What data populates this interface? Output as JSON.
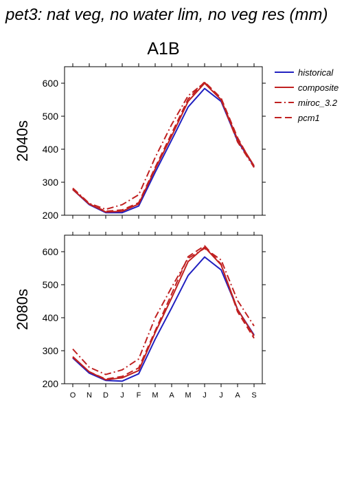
{
  "title": "pet3: nat veg, no water lim, no veg res (mm)",
  "subtitle": "A1B",
  "legend": {
    "placement": "right",
    "entries": [
      {
        "name": "historical",
        "color": "#2020c0",
        "dash": "solid"
      },
      {
        "name": "composite",
        "color": "#c02020",
        "dash": "solid"
      },
      {
        "name": "miroc_3.2",
        "color": "#c02020",
        "dash": "dashdot"
      },
      {
        "name": "pcm1",
        "color": "#c02020",
        "dash": "dashed"
      }
    ]
  },
  "chart_data": [
    {
      "type": "line",
      "panel_label": "2040s",
      "categories": [
        "O",
        "N",
        "D",
        "J",
        "F",
        "M",
        "A",
        "M",
        "J",
        "J",
        "A",
        "S"
      ],
      "ylim": [
        200,
        650
      ],
      "yticks": [
        200,
        300,
        400,
        500,
        600
      ],
      "series": [
        {
          "name": "historical",
          "values": [
            278,
            232,
            208,
            208,
            228,
            330,
            428,
            528,
            584,
            545,
            425,
            348
          ]
        },
        {
          "name": "composite",
          "values": [
            278,
            234,
            210,
            212,
            234,
            340,
            440,
            545,
            600,
            550,
            430,
            350
          ]
        },
        {
          "name": "miroc_3.2",
          "values": [
            282,
            236,
            218,
            232,
            262,
            375,
            475,
            562,
            602,
            550,
            422,
            345
          ]
        },
        {
          "name": "pcm1",
          "values": [
            280,
            234,
            212,
            216,
            238,
            345,
            448,
            552,
            604,
            555,
            435,
            345
          ]
        }
      ]
    },
    {
      "type": "line",
      "panel_label": "2080s",
      "categories": [
        "O",
        "N",
        "D",
        "J",
        "F",
        "M",
        "A",
        "M",
        "J",
        "J",
        "A",
        "S"
      ],
      "ylim": [
        200,
        650
      ],
      "yticks": [
        200,
        300,
        400,
        500,
        600
      ],
      "series": [
        {
          "name": "historical",
          "values": [
            278,
            232,
            210,
            208,
            230,
            335,
            430,
            528,
            584,
            545,
            425,
            348
          ]
        },
        {
          "name": "composite",
          "values": [
            282,
            236,
            212,
            218,
            240,
            355,
            460,
            570,
            614,
            560,
            425,
            345
          ]
        },
        {
          "name": "miroc_3.2",
          "values": [
            305,
            250,
            228,
            242,
            275,
            400,
            492,
            580,
            610,
            575,
            452,
            375
          ]
        },
        {
          "name": "pcm1",
          "values": [
            280,
            236,
            214,
            222,
            248,
            360,
            472,
            585,
            618,
            562,
            418,
            338
          ]
        }
      ]
    }
  ]
}
